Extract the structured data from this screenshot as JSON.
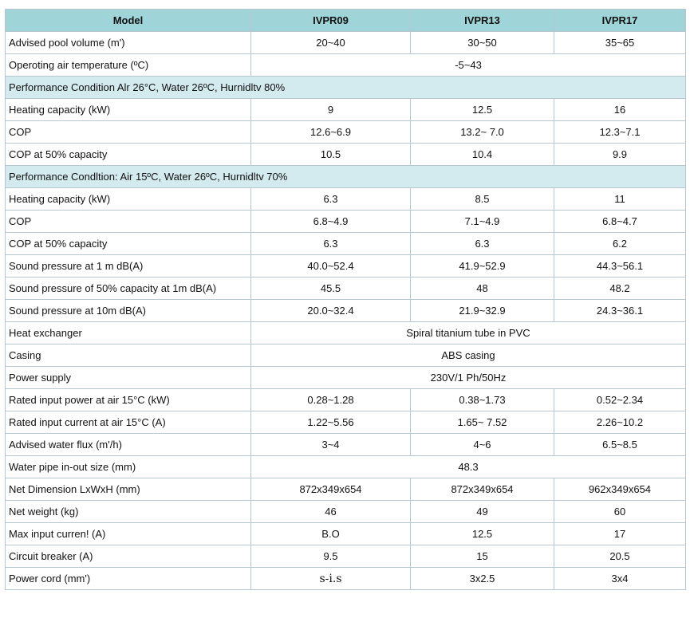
{
  "header": {
    "model_label": "Model",
    "models": [
      "IVPR09",
      "IVPR13",
      "IVPR17"
    ]
  },
  "rows": [
    {
      "type": "row",
      "label": "Advised pool volume  (m')",
      "values": [
        "20~40",
        "30~50",
        "35~65"
      ]
    },
    {
      "type": "span",
      "label": "Operoting air temperature (ºC)",
      "value": "-5~43"
    },
    {
      "type": "section",
      "label": "Performance Condition  Alr 26°C, Water 26ºC, Hurnidltv 80%"
    },
    {
      "type": "row",
      "label": "Heating capacity  (kW)",
      "values": [
        "9",
        "12.5",
        "16"
      ]
    },
    {
      "type": "row",
      "label": "COP",
      "values": [
        "12.6~6.9",
        "13.2~ 7.0",
        "12.3~7.1"
      ]
    },
    {
      "type": "row",
      "label": "COP at 50% capacity",
      "values": [
        "10.5",
        "10.4",
        "9.9"
      ]
    },
    {
      "type": "section",
      "label": "Performance Condltion: Air 15ºC, Water 26ºC, Hurnidltv 70%"
    },
    {
      "type": "row",
      "label": "Heating capacity  (kW)",
      "values": [
        "6.3",
        "8.5",
        "11"
      ]
    },
    {
      "type": "row",
      "label": "COP",
      "values": [
        "6.8~4.9",
        "7.1~4.9",
        "6.8~4.7"
      ]
    },
    {
      "type": "row",
      "label": "COP at 50% capacity",
      "values": [
        "6.3",
        "6.3",
        "6.2"
      ]
    },
    {
      "type": "row",
      "label": "Sound pressure at 1 m dB(A)",
      "values": [
        "40.0~52.4",
        "41.9~52.9",
        "44.3~56.1"
      ]
    },
    {
      "type": "row",
      "label": "Sound pressure of 50% capacity at 1m dB(A)",
      "values": [
        "45.5",
        "48",
        "48.2"
      ]
    },
    {
      "type": "row",
      "label": "Sound pressure at 10m dB(A)",
      "values": [
        "20.0~32.4",
        "21.9~32.9",
        "24.3~36.1"
      ]
    },
    {
      "type": "span",
      "label": "Heat exchanger",
      "value": "Spiral titanium tube in PVC"
    },
    {
      "type": "span",
      "label": "Casing",
      "value": "ABS casing"
    },
    {
      "type": "span",
      "label": "Power supply",
      "value": "230V/1  Ph/50Hz"
    },
    {
      "type": "row",
      "label": "Rated input power  at air 15°C (kW)",
      "values": [
        "0.28~1.28",
        "0.38~1.73",
        "0.52~2.34"
      ]
    },
    {
      "type": "row",
      "label": "Rated input current  at air 15°C  (A)",
      "values": [
        "1.22~5.56",
        "1.65~ 7.52",
        "2.26~10.2"
      ]
    },
    {
      "type": "row",
      "label": "Advised water flux   (m'/h)",
      "values": [
        "3~4",
        "4~6",
        "6.5~8.5"
      ]
    },
    {
      "type": "span",
      "label": "Water pipe in-out size   (mm)",
      "value": "48.3"
    },
    {
      "type": "row",
      "label": "Net Dimension LxWxH (mm)",
      "values": [
        "872x349x654",
        "872x349x654",
        "962x349x654"
      ]
    },
    {
      "type": "row",
      "label": "Net weight     (kg)",
      "values": [
        "46",
        "49",
        "60"
      ]
    },
    {
      "type": "row",
      "label": "Max input curren!  (A)",
      "values": [
        "B.O",
        "12.5",
        "17"
      ]
    },
    {
      "type": "row",
      "label": "Circuit breaker  (A)",
      "values": [
        "9.5",
        "15",
        "20.5"
      ]
    },
    {
      "type": "row",
      "label": "Power cord  (mm')",
      "values": [
        "s-i.s",
        "3x2.5",
        "3x4"
      ]
    }
  ]
}
